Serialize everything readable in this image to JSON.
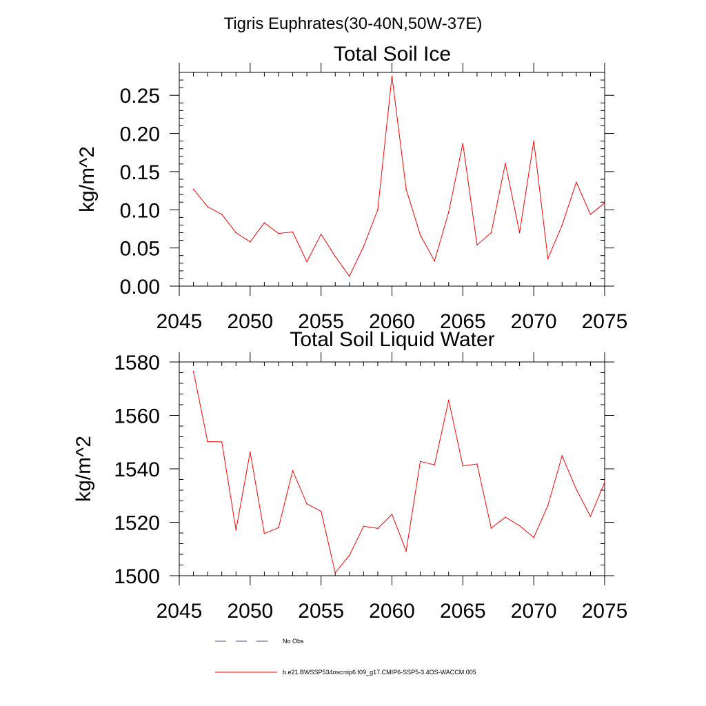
{
  "figure_title": "Tigris Euphrates(30-40N,50W-37E)",
  "colors": {
    "series": "#ff0000",
    "obs": "#4b4b9a",
    "axis": "#000000"
  },
  "legend": {
    "obs_label": "No Obs",
    "model_label": "b.e21.BWSSP534oscmip6.f09_g17.CMIP6-SSP5-3.4OS-WACCM.005"
  },
  "chart_data": [
    {
      "type": "line",
      "title": "Total Soil Ice",
      "xlabel": "",
      "ylabel": "kg/m^2",
      "xlim": [
        2045,
        2075
      ],
      "ylim": [
        0,
        0.28
      ],
      "xticks": [
        2045,
        2050,
        2055,
        2060,
        2065,
        2070,
        2075
      ],
      "yticks": [
        0,
        0.05,
        0.1,
        0.15,
        0.2,
        0.25
      ],
      "ytick_labels": [
        "0.00",
        "0.05",
        "0.10",
        "0.15",
        "0.20",
        "0.25"
      ],
      "x": [
        2046,
        2047,
        2048,
        2049,
        2050,
        2051,
        2052,
        2053,
        2054,
        2055,
        2056,
        2057,
        2058,
        2059,
        2060,
        2061,
        2062,
        2063,
        2064,
        2065,
        2066,
        2067,
        2068,
        2069,
        2070,
        2071,
        2072,
        2073,
        2074,
        2075
      ],
      "series": [
        {
          "name": "b.e21.BWSSP534oscmip6.f09_g17.CMIP6-SSP5-3.4OS-WACCM.005",
          "values": [
            0.127,
            0.104,
            0.094,
            0.07,
            0.058,
            0.083,
            0.069,
            0.071,
            0.032,
            0.068,
            0.039,
            0.013,
            0.052,
            0.1,
            0.275,
            0.127,
            0.067,
            0.033,
            0.097,
            0.187,
            0.054,
            0.07,
            0.161,
            0.07,
            0.19,
            0.036,
            0.08,
            0.136,
            0.094,
            0.109
          ]
        }
      ]
    },
    {
      "type": "line",
      "title": "Total Soil Liquid Water",
      "xlabel": "",
      "ylabel": "kg/m^2",
      "xlim": [
        2045,
        2075
      ],
      "ylim": [
        1500,
        1580
      ],
      "xticks": [
        2045,
        2050,
        2055,
        2060,
        2065,
        2070,
        2075
      ],
      "yticks": [
        1500,
        1520,
        1540,
        1560,
        1580
      ],
      "ytick_labels": [
        "1500",
        "1520",
        "1540",
        "1560",
        "1580"
      ],
      "x": [
        2046,
        2047,
        2048,
        2049,
        2050,
        2051,
        2052,
        2053,
        2054,
        2055,
        2056,
        2057,
        2058,
        2059,
        2060,
        2061,
        2062,
        2063,
        2064,
        2065,
        2066,
        2067,
        2068,
        2069,
        2070,
        2071,
        2072,
        2073,
        2074,
        2075
      ],
      "series": [
        {
          "name": "b.e21.BWSSP534oscmip6.f09_g17.CMIP6-SSP5-3.4OS-WACCM.005",
          "values": [
            1576.5,
            1550.2,
            1550.1,
            1517.1,
            1546.3,
            1515.8,
            1518.0,
            1539.3,
            1526.9,
            1524.1,
            1501.1,
            1507.6,
            1518.5,
            1517.7,
            1523.0,
            1509.2,
            1542.8,
            1541.5,
            1565.7,
            1541.1,
            1541.8,
            1517.8,
            1521.9,
            1518.7,
            1514.3,
            1526.3,
            1544.9,
            1532.3,
            1522.2,
            1535.0
          ]
        }
      ]
    }
  ]
}
